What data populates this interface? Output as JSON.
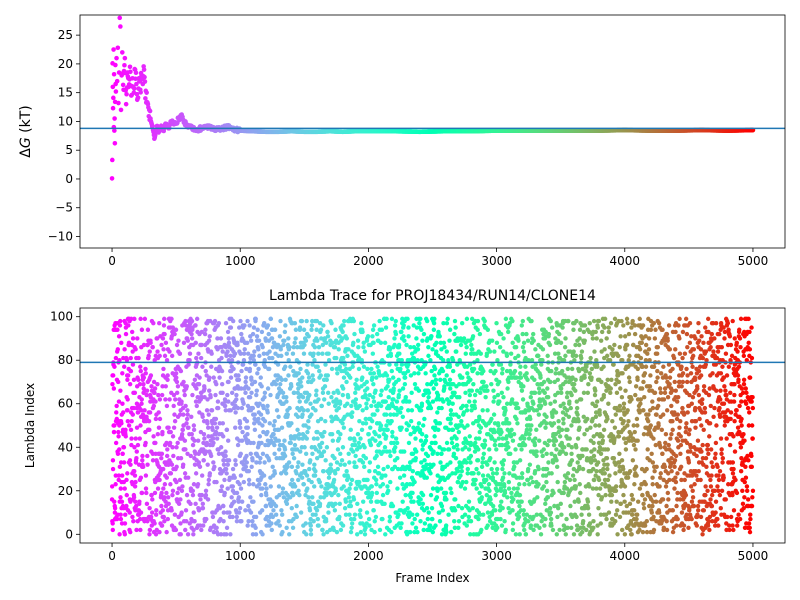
{
  "chart_data": [
    {
      "type": "scatter",
      "title": "",
      "xlabel": "",
      "ylabel": "ΔG (kT)",
      "ylabel_math": {
        "delta": "Δ",
        "var": "G",
        "unit": "(kT)"
      },
      "xlim": [
        -250,
        5250
      ],
      "ylim": [
        -12,
        28.5
      ],
      "xticks": [
        0,
        1000,
        2000,
        3000,
        4000,
        5000
      ],
      "yticks": [
        -10,
        -5,
        0,
        5,
        10,
        15,
        20,
        25
      ],
      "colormap": "rainbow (red at frame 0 → violet at frame 5000)",
      "reference_line": {
        "y": 8.8,
        "color": "#1f77b4"
      },
      "series": [
        {
          "x": [
            0,
            2,
            4,
            6,
            8,
            10,
            12,
            14,
            16,
            18,
            20,
            22,
            24,
            26,
            28,
            30,
            35,
            40,
            45,
            50,
            55,
            60,
            65,
            70,
            75,
            80,
            90,
            100,
            110,
            120,
            130,
            140,
            150,
            160,
            170,
            180,
            190,
            200,
            210,
            220,
            230,
            240,
            250,
            260,
            270,
            280,
            290,
            300,
            310,
            320,
            330,
            340,
            350,
            360,
            380,
            400,
            420,
            440,
            460,
            480,
            500,
            520,
            540,
            560,
            580,
            600,
            650,
            700,
            750,
            800,
            850,
            900,
            950,
            1000,
            1100,
            1200,
            1300,
            1400,
            1500,
            1600,
            1700,
            1800,
            1900,
            2000,
            2200,
            2400,
            2600,
            2800,
            3000,
            3200,
            3400,
            3600,
            3800,
            4000,
            4200,
            4400,
            4600,
            4800,
            5000
          ],
          "y": [
            0.1,
            3.3,
            20.1,
            16.0,
            12.3,
            14.1,
            22.5,
            9.0,
            18.2,
            8.4,
            10.5,
            6.2,
            13.4,
            19.8,
            16.5,
            15.2,
            21.0,
            17.0,
            22.8,
            13.2,
            18.5,
            28.0,
            26.5,
            12.0,
            18.0,
            22.0,
            15.5,
            21.0,
            13.0,
            18.5,
            16.0,
            19.5,
            14.5,
            17.5,
            15.0,
            19.0,
            16.5,
            14.0,
            17.5,
            15.5,
            18.0,
            16.5,
            19.0,
            14.0,
            15.0,
            13.0,
            12.0,
            10.5,
            9.5,
            8.5,
            7.0,
            8.0,
            9.2,
            8.2,
            9.0,
            8.5,
            9.4,
            8.8,
            10.0,
            9.5,
            9.8,
            10.5,
            11.0,
            9.8,
            9.5,
            9.0,
            8.6,
            8.8,
            9.1,
            8.5,
            8.7,
            9.0,
            8.6,
            8.4,
            8.3,
            8.2,
            8.2,
            8.3,
            8.2,
            8.2,
            8.3,
            8.2,
            8.3,
            8.3,
            8.3,
            8.2,
            8.3,
            8.3,
            8.4,
            8.4,
            8.4,
            8.4,
            8.4,
            8.5,
            8.4,
            8.4,
            8.5,
            8.4,
            8.5
          ]
        }
      ]
    },
    {
      "type": "scatter",
      "title": "Lambda Trace for PROJ18434/RUN14/CLONE14",
      "xlabel": "Frame Index",
      "ylabel": "Lambda Index",
      "xlim": [
        -250,
        5250
      ],
      "ylim": [
        -4,
        104
      ],
      "xticks": [
        0,
        1000,
        2000,
        3000,
        4000,
        5000
      ],
      "yticks": [
        0,
        20,
        40,
        60,
        80,
        100
      ],
      "colormap": "rainbow (red at frame 0 → violet at frame 5000)",
      "reference_line": {
        "y": 79,
        "color": "#1f77b4"
      },
      "series": [
        {
          "description": "one point per frame, lambda index values spread uniformly over 0–99 for frames 0–5000",
          "frame_range": [
            0,
            5000
          ],
          "lambda_range": [
            0,
            99
          ]
        }
      ]
    }
  ]
}
